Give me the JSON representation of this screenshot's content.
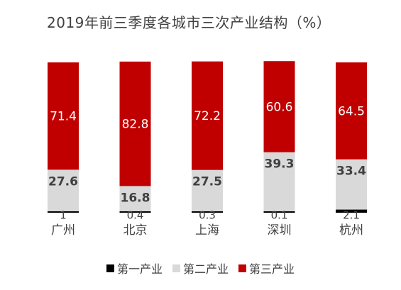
{
  "chart_data": {
    "type": "bar",
    "stacked": true,
    "title": "2019年前三季度各城市三次产业结构（%）",
    "categories": [
      "广州",
      "北京",
      "上海",
      "深圳",
      "杭州"
    ],
    "series": [
      {
        "name": "第一产业",
        "color": "#000000",
        "values": [
          1,
          0.4,
          0.3,
          0.1,
          2.1
        ],
        "labels": [
          "1",
          "0.4",
          "0.3",
          "0.1",
          "2.1"
        ]
      },
      {
        "name": "第二产业",
        "color": "#d9d9d9",
        "values": [
          27.6,
          16.8,
          27.5,
          39.3,
          33.4
        ],
        "labels": [
          "27.6",
          "16.8",
          "27.5",
          "39.3",
          "33.4"
        ]
      },
      {
        "name": "第三产业",
        "color": "#c00000",
        "values": [
          71.4,
          82.8,
          72.2,
          60.6,
          64.5
        ],
        "labels": [
          "71.4",
          "82.8",
          "72.2",
          "60.6",
          "64.5"
        ]
      }
    ],
    "ylim": [
      0,
      100
    ],
    "grid": false,
    "legend_position": "bottom"
  }
}
